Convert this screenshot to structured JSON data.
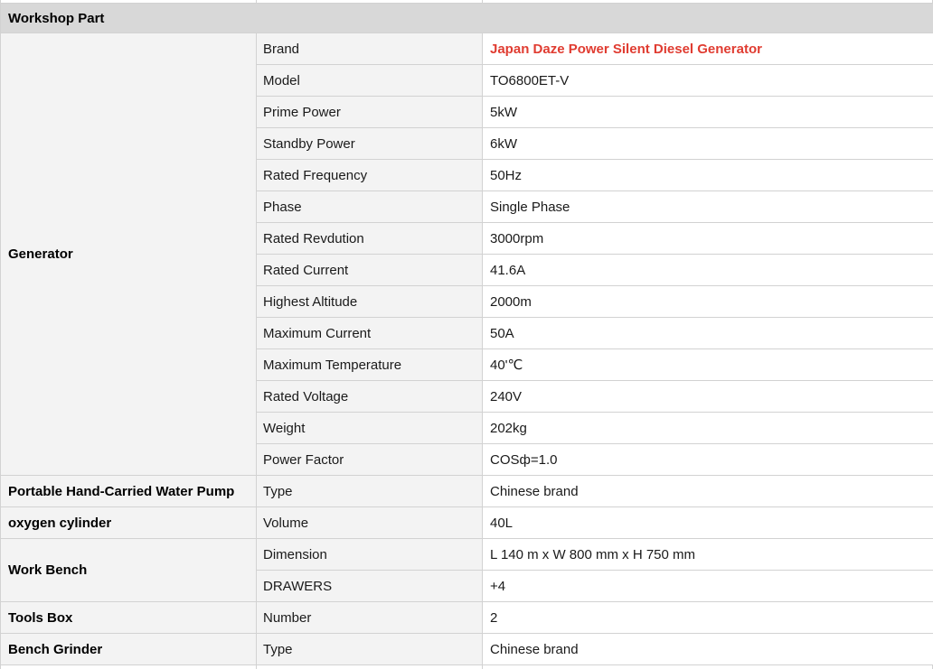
{
  "colors": {
    "brand_highlight": "#e03c31",
    "header_bg": "#d8d8d8",
    "label_bg": "#f3f3f3",
    "value_bg": "#ffffff",
    "border": "#d2d2d2"
  },
  "table": {
    "header": "Workshop Part",
    "sections": [
      {
        "category": "Generator",
        "rows": [
          {
            "label": "Brand",
            "value": "Japan Daze Power Silent Diesel Generator",
            "highlight": true
          },
          {
            "label": "Model",
            "value": "TO6800ET-V"
          },
          {
            "label": "Prime Power",
            "value": "5kW"
          },
          {
            "label": "Standby Power",
            "value": "6kW"
          },
          {
            "label": "Rated Frequency",
            "value": "50Hz"
          },
          {
            "label": "Phase",
            "value": "Single Phase"
          },
          {
            "label": "Rated Revdution",
            "value": "3000rpm"
          },
          {
            "label": "Rated Current",
            "value": "41.6A"
          },
          {
            "label": "Highest Altitude",
            "value": "2000m"
          },
          {
            "label": "Maximum Current",
            "value": "50A"
          },
          {
            "label": "Maximum Temperature",
            "value": "40'℃"
          },
          {
            "label": "Rated Voltage",
            "value": "240V"
          },
          {
            "label": "Weight",
            "value": "202kg"
          },
          {
            "label": "Power Factor",
            "value": "COSф=1.0"
          }
        ]
      },
      {
        "category": "Portable Hand-Carried Water Pump",
        "rows": [
          {
            "label": "Type",
            "value": "Chinese brand"
          }
        ]
      },
      {
        "category": "oxygen cylinder",
        "rows": [
          {
            "label": "Volume",
            "value": "40L"
          }
        ]
      },
      {
        "category": "Work Bench",
        "rows": [
          {
            "label": "Dimension",
            "value": "L 140 m x W 800 mm x H 750 mm"
          },
          {
            "label": "DRAWERS",
            "value": "+4"
          }
        ]
      },
      {
        "category": "Tools Box",
        "rows": [
          {
            "label": "Number",
            "value": "2"
          }
        ]
      },
      {
        "category": "Bench Grinder",
        "rows": [
          {
            "label": "Type",
            "value": "Chinese brand"
          }
        ]
      }
    ]
  }
}
